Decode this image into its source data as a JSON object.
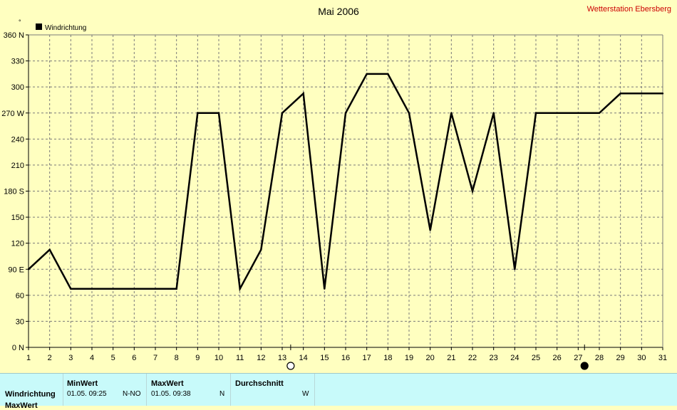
{
  "chart_data": {
    "type": "line",
    "title": "Mai 2006",
    "y_unit_symbol": "°",
    "legend": [
      "Windrichtung"
    ],
    "legend_position": "top-left",
    "grid": true,
    "ylim": [
      0,
      360
    ],
    "y_ticks": [
      {
        "v": 0,
        "label": "0 N"
      },
      {
        "v": 30,
        "label": "30"
      },
      {
        "v": 60,
        "label": "60"
      },
      {
        "v": 90,
        "label": "90 E"
      },
      {
        "v": 120,
        "label": "120"
      },
      {
        "v": 150,
        "label": "150"
      },
      {
        "v": 180,
        "label": "180 S"
      },
      {
        "v": 210,
        "label": "210"
      },
      {
        "v": 240,
        "label": "240"
      },
      {
        "v": 270,
        "label": "270 W"
      },
      {
        "v": 300,
        "label": "300"
      },
      {
        "v": 330,
        "label": "330"
      },
      {
        "v": 360,
        "label": "360 N"
      }
    ],
    "xlim": [
      1,
      31
    ],
    "x_ticks": [
      "1",
      "2",
      "3",
      "4",
      "5",
      "6",
      "7",
      "8",
      "9",
      "10",
      "11",
      "12",
      "13",
      "14",
      "15",
      "16",
      "17",
      "18",
      "19",
      "20",
      "21",
      "22",
      "23",
      "24",
      "25",
      "26",
      "27",
      "28",
      "29",
      "30",
      "31"
    ],
    "series": [
      {
        "name": "Windrichtung",
        "color": "#000000",
        "points": [
          [
            1,
            90
          ],
          [
            2,
            112.5
          ],
          [
            3,
            67.5
          ],
          [
            4,
            67.5
          ],
          [
            5,
            67.5
          ],
          [
            6,
            67.5
          ],
          [
            7,
            67.5
          ],
          [
            8,
            67.5
          ],
          [
            9,
            270
          ],
          [
            10,
            270
          ],
          [
            11,
            67.5
          ],
          [
            12,
            112.5
          ],
          [
            13,
            270
          ],
          [
            14,
            292.5
          ],
          [
            15,
            67.5
          ],
          [
            16,
            270
          ],
          [
            17,
            315
          ],
          [
            18,
            315
          ],
          [
            19,
            270
          ],
          [
            20,
            135
          ],
          [
            21,
            270
          ],
          [
            22,
            180
          ],
          [
            23,
            270
          ],
          [
            24,
            90
          ],
          [
            25,
            270
          ],
          [
            26,
            270
          ],
          [
            27,
            270
          ],
          [
            28,
            270
          ],
          [
            29,
            292.5
          ],
          [
            30,
            292.5
          ],
          [
            31,
            292.5
          ]
        ]
      }
    ],
    "moon_markers": [
      {
        "day": 13.4,
        "icon": "full-moon-icon"
      },
      {
        "day": 27.3,
        "icon": "new-moon-icon"
      }
    ]
  },
  "header": {
    "station": "Wetterstation Ebersberg"
  },
  "stats": {
    "min_header": "MinWert",
    "max_header": "MaxWert",
    "avg_header": "Durchschnitt",
    "row1_label": "Windrichtung",
    "row2_label": "MaxWert",
    "min_time": "01.05.  09:25",
    "min_value": "N-NO",
    "max_time": "01.05.  09:38",
    "max_value": "N",
    "avg_value": "W"
  }
}
